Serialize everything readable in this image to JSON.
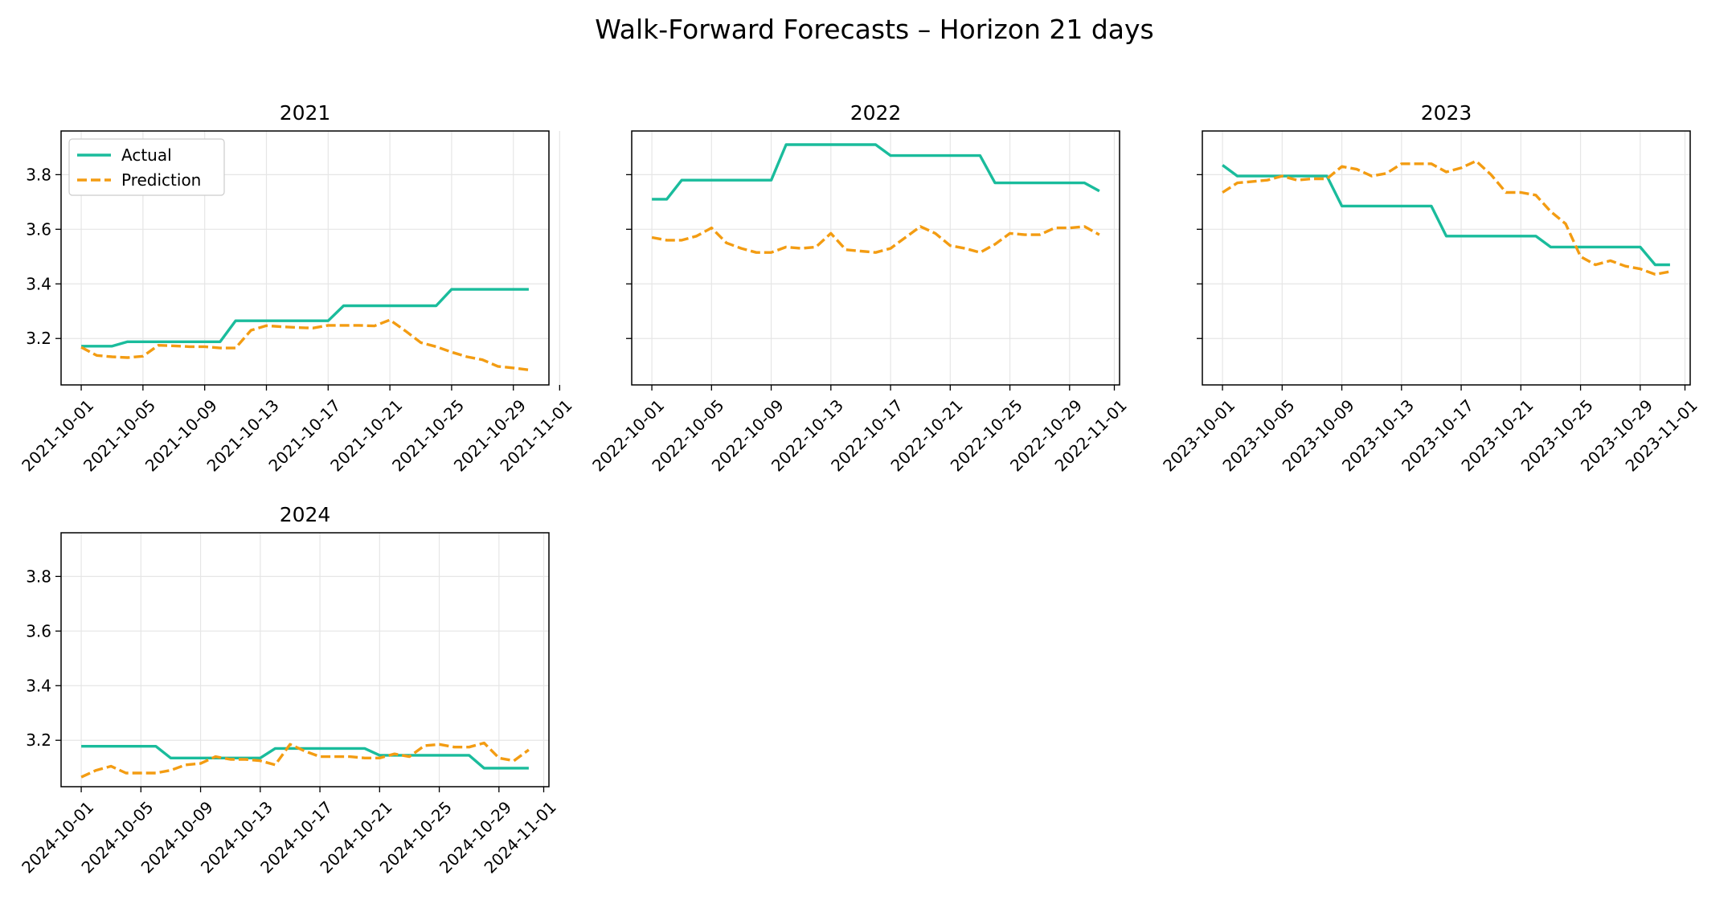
{
  "title": "Walk-Forward Forecasts – Horizon 21 days",
  "colors": {
    "actual": "#1abc9c",
    "prediction": "#f39c12",
    "grid": "#e6e6e6",
    "frame": "#000000"
  },
  "chart_data": [
    {
      "type": "line",
      "title": "2021",
      "xlabel": "",
      "ylabel": "",
      "x_range": [
        "2021-10-01",
        "2021-10-30"
      ],
      "x_ticks": [
        "2021-10-01",
        "2021-10-05",
        "2021-10-09",
        "2021-10-13",
        "2021-10-17",
        "2021-10-21",
        "2021-10-25",
        "2021-10-29",
        "2021-11-01"
      ],
      "ylim": [
        3.03,
        3.96
      ],
      "y_ticks": [
        "3.2",
        "3.4",
        "3.6",
        "3.8"
      ],
      "y_tick_labels_visible": true,
      "grid": true,
      "legend": {
        "position": "upper-left",
        "entries": [
          "Actual",
          "Prediction"
        ]
      },
      "series": [
        {
          "name": "Actual",
          "style": "solid",
          "x": [
            "2021-10-01",
            "2021-10-02",
            "2021-10-03",
            "2021-10-04",
            "2021-10-05",
            "2021-10-06",
            "2021-10-07",
            "2021-10-08",
            "2021-10-09",
            "2021-10-10",
            "2021-10-11",
            "2021-10-12",
            "2021-10-13",
            "2021-10-14",
            "2021-10-15",
            "2021-10-16",
            "2021-10-17",
            "2021-10-18",
            "2021-10-19",
            "2021-10-20",
            "2021-10-21",
            "2021-10-22",
            "2021-10-23",
            "2021-10-24",
            "2021-10-25",
            "2021-10-26",
            "2021-10-27",
            "2021-10-28",
            "2021-10-29",
            "2021-10-30"
          ],
          "values": [
            3.172,
            3.172,
            3.172,
            3.188,
            3.188,
            3.188,
            3.188,
            3.188,
            3.188,
            3.188,
            3.265,
            3.265,
            3.265,
            3.265,
            3.265,
            3.265,
            3.265,
            3.32,
            3.32,
            3.32,
            3.32,
            3.32,
            3.32,
            3.32,
            3.38,
            3.38,
            3.38,
            3.38,
            3.38,
            3.38
          ]
        },
        {
          "name": "Prediction",
          "style": "dashed",
          "x": [
            "2021-10-01",
            "2021-10-02",
            "2021-10-03",
            "2021-10-04",
            "2021-10-05",
            "2021-10-06",
            "2021-10-07",
            "2021-10-08",
            "2021-10-09",
            "2021-10-10",
            "2021-10-11",
            "2021-10-12",
            "2021-10-13",
            "2021-10-14",
            "2021-10-15",
            "2021-10-16",
            "2021-10-17",
            "2021-10-18",
            "2021-10-19",
            "2021-10-20",
            "2021-10-21",
            "2021-10-22",
            "2021-10-23",
            "2021-10-24",
            "2021-10-25",
            "2021-10-26",
            "2021-10-27",
            "2021-10-28",
            "2021-10-29",
            "2021-10-30"
          ],
          "values": [
            3.168,
            3.138,
            3.133,
            3.13,
            3.135,
            3.175,
            3.173,
            3.17,
            3.17,
            3.165,
            3.165,
            3.23,
            3.247,
            3.243,
            3.24,
            3.238,
            3.248,
            3.248,
            3.248,
            3.246,
            3.268,
            3.228,
            3.185,
            3.17,
            3.15,
            3.133,
            3.122,
            3.098,
            3.092,
            3.085
          ]
        }
      ]
    },
    {
      "type": "line",
      "title": "2022",
      "xlabel": "",
      "ylabel": "",
      "x_range": [
        "2022-10-01",
        "2022-10-31"
      ],
      "x_ticks": [
        "2022-10-01",
        "2022-10-05",
        "2022-10-09",
        "2022-10-13",
        "2022-10-17",
        "2022-10-21",
        "2022-10-25",
        "2022-10-29",
        "2022-11-01"
      ],
      "ylim": [
        3.03,
        3.96
      ],
      "y_ticks": [
        "3.2",
        "3.4",
        "3.6",
        "3.8"
      ],
      "y_tick_labels_visible": false,
      "grid": true,
      "series": [
        {
          "name": "Actual",
          "style": "solid",
          "x": [
            "2022-10-01",
            "2022-10-02",
            "2022-10-03",
            "2022-10-04",
            "2022-10-05",
            "2022-10-06",
            "2022-10-07",
            "2022-10-08",
            "2022-10-09",
            "2022-10-10",
            "2022-10-11",
            "2022-10-12",
            "2022-10-13",
            "2022-10-14",
            "2022-10-15",
            "2022-10-16",
            "2022-10-17",
            "2022-10-18",
            "2022-10-19",
            "2022-10-20",
            "2022-10-21",
            "2022-10-22",
            "2022-10-23",
            "2022-10-24",
            "2022-10-25",
            "2022-10-26",
            "2022-10-27",
            "2022-10-28",
            "2022-10-29",
            "2022-10-30",
            "2022-10-31"
          ],
          "values": [
            3.71,
            3.71,
            3.78,
            3.78,
            3.78,
            3.78,
            3.78,
            3.78,
            3.78,
            3.91,
            3.91,
            3.91,
            3.91,
            3.91,
            3.91,
            3.91,
            3.87,
            3.87,
            3.87,
            3.87,
            3.87,
            3.87,
            3.87,
            3.77,
            3.77,
            3.77,
            3.77,
            3.77,
            3.77,
            3.77,
            3.74
          ]
        },
        {
          "name": "Prediction",
          "style": "dashed",
          "x": [
            "2022-10-01",
            "2022-10-02",
            "2022-10-03",
            "2022-10-04",
            "2022-10-05",
            "2022-10-06",
            "2022-10-07",
            "2022-10-08",
            "2022-10-09",
            "2022-10-10",
            "2022-10-11",
            "2022-10-12",
            "2022-10-13",
            "2022-10-14",
            "2022-10-15",
            "2022-10-16",
            "2022-10-17",
            "2022-10-18",
            "2022-10-19",
            "2022-10-20",
            "2022-10-21",
            "2022-10-22",
            "2022-10-23",
            "2022-10-24",
            "2022-10-25",
            "2022-10-26",
            "2022-10-27",
            "2022-10-28",
            "2022-10-29",
            "2022-10-30",
            "2022-10-31"
          ],
          "values": [
            3.57,
            3.56,
            3.56,
            3.575,
            3.605,
            3.55,
            3.53,
            3.515,
            3.515,
            3.535,
            3.53,
            3.535,
            3.585,
            3.525,
            3.52,
            3.515,
            3.53,
            3.57,
            3.61,
            3.585,
            3.54,
            3.53,
            3.515,
            3.545,
            3.585,
            3.58,
            3.58,
            3.605,
            3.605,
            3.61,
            3.58
          ]
        }
      ]
    },
    {
      "type": "line",
      "title": "2023",
      "xlabel": "",
      "ylabel": "",
      "x_range": [
        "2023-10-01",
        "2023-10-31"
      ],
      "x_ticks": [
        "2023-10-01",
        "2023-10-05",
        "2023-10-09",
        "2023-10-13",
        "2023-10-17",
        "2023-10-21",
        "2023-10-25",
        "2023-10-29",
        "2023-11-01"
      ],
      "ylim": [
        3.03,
        3.96
      ],
      "y_ticks": [
        "3.2",
        "3.4",
        "3.6",
        "3.8"
      ],
      "y_tick_labels_visible": false,
      "grid": true,
      "series": [
        {
          "name": "Actual",
          "style": "solid",
          "x": [
            "2023-10-01",
            "2023-10-02",
            "2023-10-03",
            "2023-10-04",
            "2023-10-05",
            "2023-10-06",
            "2023-10-07",
            "2023-10-08",
            "2023-10-09",
            "2023-10-10",
            "2023-10-11",
            "2023-10-12",
            "2023-10-13",
            "2023-10-14",
            "2023-10-15",
            "2023-10-16",
            "2023-10-17",
            "2023-10-18",
            "2023-10-19",
            "2023-10-20",
            "2023-10-21",
            "2023-10-22",
            "2023-10-23",
            "2023-10-24",
            "2023-10-25",
            "2023-10-26",
            "2023-10-27",
            "2023-10-28",
            "2023-10-29",
            "2023-10-30",
            "2023-10-31"
          ],
          "values": [
            3.835,
            3.795,
            3.795,
            3.795,
            3.795,
            3.795,
            3.795,
            3.795,
            3.685,
            3.685,
            3.685,
            3.685,
            3.685,
            3.685,
            3.685,
            3.575,
            3.575,
            3.575,
            3.575,
            3.575,
            3.575,
            3.575,
            3.535,
            3.535,
            3.535,
            3.535,
            3.535,
            3.535,
            3.535,
            3.47,
            3.47
          ]
        },
        {
          "name": "Prediction",
          "style": "dashed",
          "x": [
            "2023-10-01",
            "2023-10-02",
            "2023-10-03",
            "2023-10-04",
            "2023-10-05",
            "2023-10-06",
            "2023-10-07",
            "2023-10-08",
            "2023-10-09",
            "2023-10-10",
            "2023-10-11",
            "2023-10-12",
            "2023-10-13",
            "2023-10-14",
            "2023-10-15",
            "2023-10-16",
            "2023-10-17",
            "2023-10-18",
            "2023-10-19",
            "2023-10-20",
            "2023-10-21",
            "2023-10-22",
            "2023-10-23",
            "2023-10-24",
            "2023-10-25",
            "2023-10-26",
            "2023-10-27",
            "2023-10-28",
            "2023-10-29",
            "2023-10-30",
            "2023-10-31"
          ],
          "values": [
            3.735,
            3.77,
            3.775,
            3.78,
            3.795,
            3.78,
            3.785,
            3.785,
            3.83,
            3.82,
            3.795,
            3.805,
            3.84,
            3.84,
            3.84,
            3.81,
            3.825,
            3.85,
            3.8,
            3.735,
            3.735,
            3.725,
            3.665,
            3.62,
            3.5,
            3.47,
            3.485,
            3.465,
            3.455,
            3.435,
            3.445
          ]
        }
      ]
    },
    {
      "type": "line",
      "title": "2024",
      "xlabel": "",
      "ylabel": "",
      "x_range": [
        "2024-10-01",
        "2024-10-31"
      ],
      "x_ticks": [
        "2024-10-01",
        "2024-10-05",
        "2024-10-09",
        "2024-10-13",
        "2024-10-17",
        "2024-10-21",
        "2024-10-25",
        "2024-10-29",
        "2024-11-01"
      ],
      "ylim": [
        3.03,
        3.96
      ],
      "y_ticks": [
        "3.2",
        "3.4",
        "3.6",
        "3.8"
      ],
      "y_tick_labels_visible": true,
      "grid": true,
      "series": [
        {
          "name": "Actual",
          "style": "solid",
          "x": [
            "2024-10-01",
            "2024-10-02",
            "2024-10-03",
            "2024-10-04",
            "2024-10-05",
            "2024-10-06",
            "2024-10-07",
            "2024-10-08",
            "2024-10-09",
            "2024-10-10",
            "2024-10-11",
            "2024-10-12",
            "2024-10-13",
            "2024-10-14",
            "2024-10-15",
            "2024-10-16",
            "2024-10-17",
            "2024-10-18",
            "2024-10-19",
            "2024-10-20",
            "2024-10-21",
            "2024-10-22",
            "2024-10-23",
            "2024-10-24",
            "2024-10-25",
            "2024-10-26",
            "2024-10-27",
            "2024-10-28",
            "2024-10-29",
            "2024-10-30",
            "2024-10-31"
          ],
          "values": [
            3.178,
            3.178,
            3.178,
            3.178,
            3.178,
            3.178,
            3.135,
            3.135,
            3.135,
            3.135,
            3.135,
            3.135,
            3.135,
            3.17,
            3.17,
            3.17,
            3.17,
            3.17,
            3.17,
            3.17,
            3.145,
            3.145,
            3.145,
            3.145,
            3.145,
            3.145,
            3.145,
            3.098,
            3.098,
            3.098,
            3.098
          ]
        },
        {
          "name": "Prediction",
          "style": "dashed",
          "x": [
            "2024-10-01",
            "2024-10-02",
            "2024-10-03",
            "2024-10-04",
            "2024-10-05",
            "2024-10-06",
            "2024-10-07",
            "2024-10-08",
            "2024-10-09",
            "2024-10-10",
            "2024-10-11",
            "2024-10-12",
            "2024-10-13",
            "2024-10-14",
            "2024-10-15",
            "2024-10-16",
            "2024-10-17",
            "2024-10-18",
            "2024-10-19",
            "2024-10-20",
            "2024-10-21",
            "2024-10-22",
            "2024-10-23",
            "2024-10-24",
            "2024-10-25",
            "2024-10-26",
            "2024-10-27",
            "2024-10-28",
            "2024-10-29",
            "2024-10-30",
            "2024-10-31"
          ],
          "values": [
            3.065,
            3.09,
            3.105,
            3.08,
            3.08,
            3.08,
            3.09,
            3.11,
            3.115,
            3.14,
            3.13,
            3.13,
            3.125,
            3.11,
            3.185,
            3.16,
            3.14,
            3.14,
            3.14,
            3.135,
            3.135,
            3.15,
            3.14,
            3.18,
            3.185,
            3.175,
            3.175,
            3.19,
            3.135,
            3.125,
            3.165
          ]
        }
      ]
    }
  ]
}
